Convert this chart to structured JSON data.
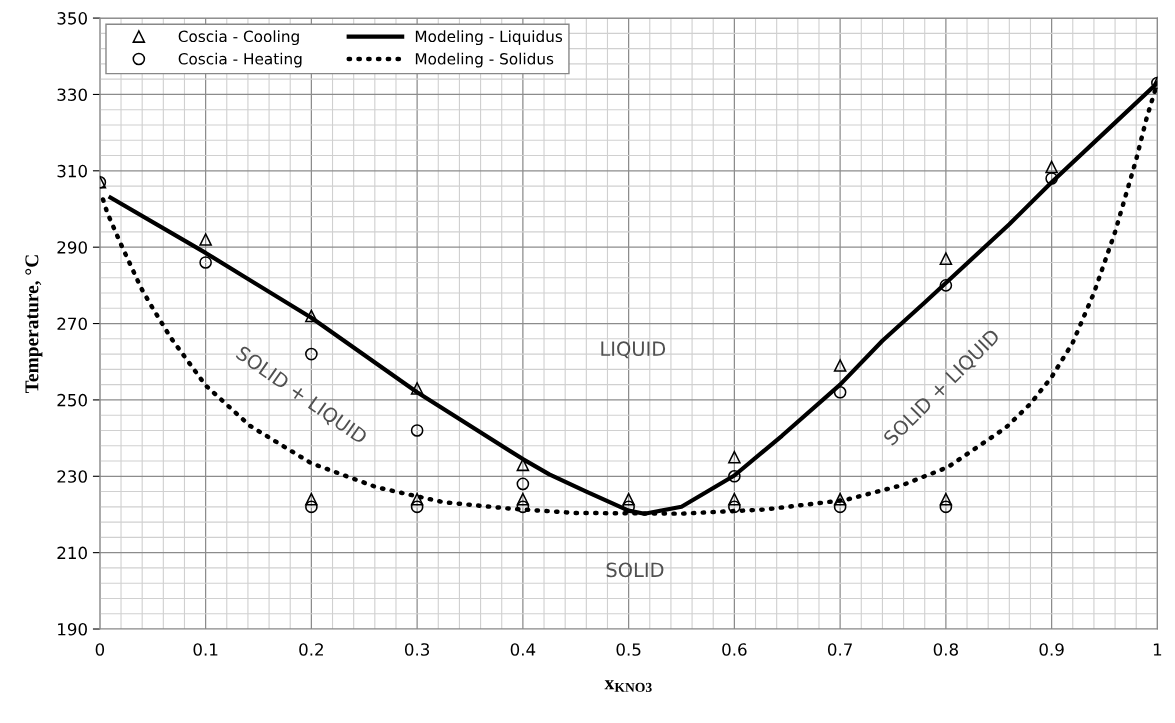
{
  "chart_data": {
    "type": "scatter",
    "xlabel": "x$_{KNO3}$",
    "ylabel": "Temperature, °C",
    "xlim": [
      0,
      1
    ],
    "xticks": [
      0,
      0.1,
      0.2,
      0.3,
      0.4,
      0.5,
      0.6,
      0.7,
      0.8,
      0.9,
      1
    ],
    "ylim": [
      190,
      350
    ],
    "yticks": [
      190,
      210,
      230,
      250,
      270,
      290,
      310,
      330,
      350
    ],
    "grid": true,
    "legend": "top left",
    "series": [
      {
        "name": "Coscia - Cooling",
        "type": "scatter",
        "marker": "triangle",
        "color": "#000000",
        "x": [
          0,
          0.1,
          0.2,
          0.2,
          0.3,
          0.3,
          0.4,
          0.4,
          0.5,
          0.6,
          0.6,
          0.7,
          0.7,
          0.8,
          0.8,
          0.9,
          1
        ],
        "values": [
          307,
          292,
          272,
          224,
          253,
          224,
          233,
          224,
          224,
          235,
          224,
          259,
          224,
          287,
          224,
          311,
          333
        ]
      },
      {
        "name": "Coscia - Heating",
        "marker": "circle",
        "color": "#000000",
        "x": [
          0,
          0.1,
          0.2,
          0.2,
          0.3,
          0.3,
          0.4,
          0.4,
          0.5,
          0.6,
          0.6,
          0.7,
          0.7,
          0.8,
          0.8,
          0.9,
          1
        ],
        "values": [
          307,
          286,
          262,
          222,
          242,
          222,
          228,
          222,
          222,
          230,
          222,
          252,
          222,
          280,
          222,
          308,
          333
        ]
      },
      {
        "name": "Modeling - Liquidus",
        "type": "line",
        "line_style": "solid",
        "color": "#000000",
        "x": [
          0.01,
          0.1,
          0.2,
          0.3,
          0.4,
          0.425,
          0.46,
          0.5,
          0.515,
          0.55,
          0.6,
          0.645,
          0.7,
          0.74,
          0.78,
          0.86,
          0.9,
          0.95,
          1
        ],
        "values": [
          303,
          288.5,
          271.5,
          252,
          234.5,
          230.5,
          226,
          221,
          220.2,
          222,
          230.2,
          240.6,
          254,
          265.5,
          275.5,
          296,
          307,
          320,
          333
        ]
      },
      {
        "name": "Modeling - Solidus",
        "type": "line",
        "line_style": "dotted",
        "color": "#000000",
        "x": [
          0.003,
          0.007,
          0.02,
          0.039,
          0.05,
          0.067,
          0.1,
          0.142,
          0.2,
          0.262,
          0.325,
          0.389,
          0.449,
          0.55,
          0.629,
          0.705,
          0.759,
          0.802,
          0.857,
          0.88,
          0.9,
          0.92,
          0.94,
          0.96,
          0.98,
          0.99,
          1
        ],
        "values": [
          302.5,
          299,
          290.7,
          279.3,
          274,
          266.3,
          253.8,
          243.2,
          233.4,
          227.1,
          223.2,
          221.5,
          220.4,
          220.2,
          221.3,
          223.8,
          227.7,
          232.4,
          242.8,
          249,
          256,
          265,
          278,
          294,
          313,
          324,
          333
        ]
      }
    ],
    "annotations": [
      "LIQUID",
      "SOLID",
      "SOLID + LIQUID",
      "SOLID + LIQUID"
    ]
  }
}
